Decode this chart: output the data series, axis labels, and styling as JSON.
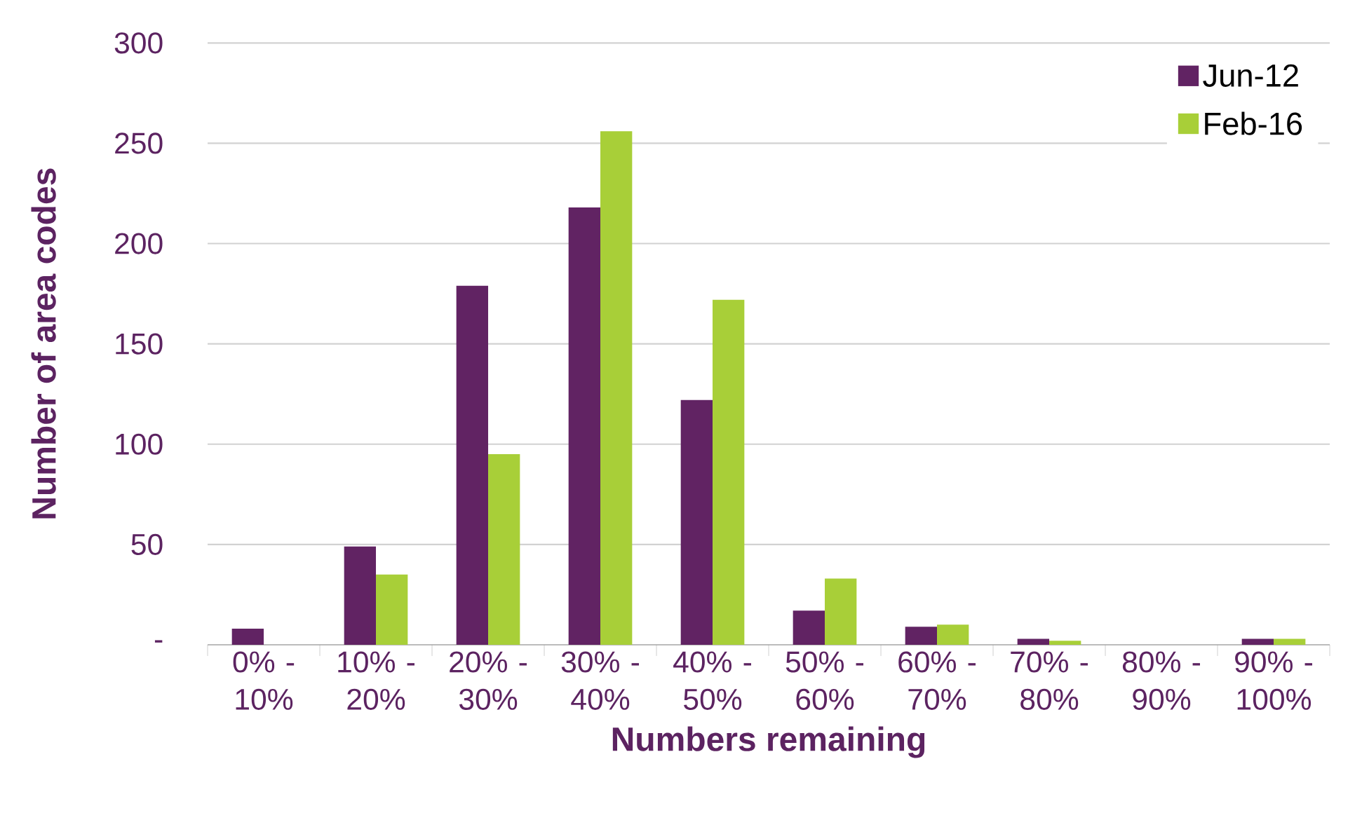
{
  "chart_data": {
    "type": "bar",
    "xlabel": "Numbers remaining",
    "ylabel": "Number of area codes",
    "categories": [
      "0% - 10%",
      "10% - 20%",
      "20% - 30%",
      "30% - 40%",
      "40% - 50%",
      "50% - 60%",
      "60% - 70%",
      "70% - 80%",
      "80% - 90%",
      "90% - 100%"
    ],
    "series": [
      {
        "name": "Jun-12",
        "color": "#612363",
        "values": [
          8,
          49,
          179,
          218,
          122,
          17,
          9,
          3,
          0,
          3
        ]
      },
      {
        "name": "Feb-16",
        "color": "#a8cf38",
        "values": [
          0,
          35,
          95,
          256,
          172,
          33,
          10,
          2,
          0,
          3
        ]
      }
    ],
    "ylim": [
      0,
      300
    ],
    "yticks": [
      {
        "value": 0,
        "label": "-"
      },
      50,
      100,
      150,
      200,
      250,
      300
    ],
    "grid": "y",
    "legend": "top right"
  }
}
